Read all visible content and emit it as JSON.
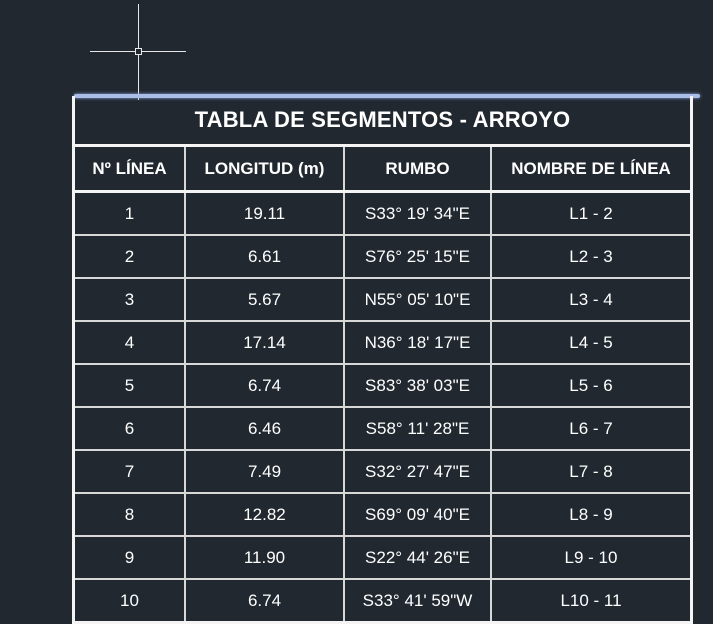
{
  "table": {
    "title": "TABLA DE SEGMENTOS - ARROYO",
    "headers": [
      "Nº LÍNEA",
      "LONGITUD (m)",
      "RUMBO",
      "NOMBRE DE LÍNEA"
    ],
    "rows": [
      [
        "1",
        "19.11",
        "S33° 19' 34\"E",
        "L1 - 2"
      ],
      [
        "2",
        "6.61",
        "S76° 25' 15\"E",
        "L2 - 3"
      ],
      [
        "3",
        "5.67",
        "N55° 05' 10\"E",
        "L3 - 4"
      ],
      [
        "4",
        "17.14",
        "N36° 18' 17\"E",
        "L4 - 5"
      ],
      [
        "5",
        "6.74",
        "S83° 38' 03\"E",
        "L5 - 6"
      ],
      [
        "6",
        "6.46",
        "S58° 11' 28\"E",
        "L6 - 7"
      ],
      [
        "7",
        "7.49",
        "S32° 27' 47\"E",
        "L7 - 8"
      ],
      [
        "8",
        "12.82",
        "S69° 09' 40\"E",
        "L8 - 9"
      ],
      [
        "9",
        "11.90",
        "S22° 44' 26\"E",
        "L9 - 10"
      ],
      [
        "10",
        "6.74",
        "S33° 41' 59\"W",
        "L10 - 11"
      ]
    ]
  },
  "colors": {
    "background": "#212830",
    "selection": "#a9bde8",
    "lines": "#f4f4f4"
  }
}
